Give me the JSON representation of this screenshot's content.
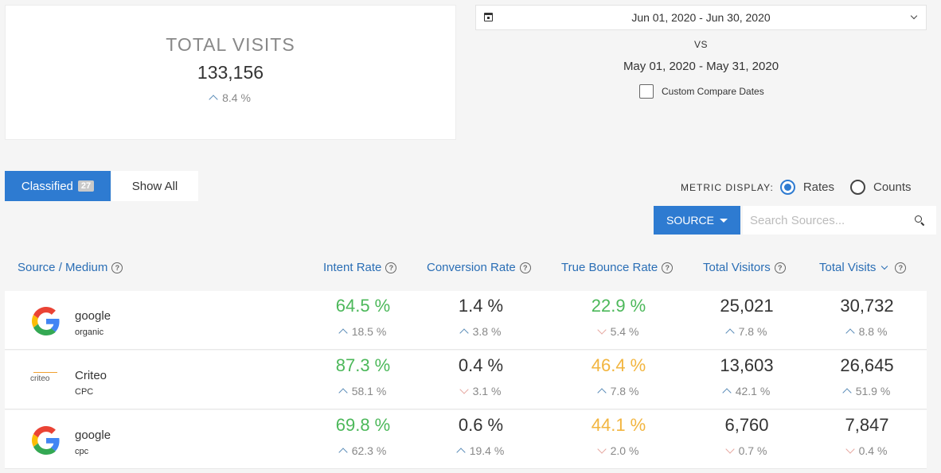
{
  "summary": {
    "title": "TOTAL VISITS",
    "value": "133,156",
    "change": "8.4 %"
  },
  "dates": {
    "primary_range": "Jun 01, 2020 - Jun 30, 2020",
    "vs_label": "VS",
    "compare_range": "May 01, 2020 - May 31, 2020",
    "custom_compare_label": "Custom Compare Dates"
  },
  "tabs": {
    "classified_label": "Classified",
    "classified_count": "27",
    "show_all_label": "Show All"
  },
  "metric_display": {
    "label": "METRIC DISPLAY:",
    "options": [
      "Rates",
      "Counts"
    ],
    "selected": "Rates"
  },
  "filter": {
    "source_button": "SOURCE",
    "search_placeholder": "Search Sources..."
  },
  "columns": [
    "Source / Medium",
    "Intent Rate",
    "Conversion Rate",
    "True Bounce Rate",
    "Total Visitors",
    "Total Visits"
  ],
  "rows": [
    {
      "name": "google",
      "medium": "organic",
      "logo": "google-logo",
      "cells": [
        {
          "value": "64.5 %",
          "change": "18.5 %"
        },
        {
          "value": "1.4 %",
          "change": "3.8 %"
        },
        {
          "value": "22.9 %",
          "change": "5.4 %"
        },
        {
          "value": "25,021",
          "change": "7.8 %"
        },
        {
          "value": "30,732",
          "change": "8.8 %"
        }
      ]
    },
    {
      "name": "Criteo",
      "medium": "CPC",
      "logo": "criteo-logo",
      "logo_text": "criteo",
      "cells": [
        {
          "value": "87.3 %",
          "change": "58.1 %"
        },
        {
          "value": "0.4 %",
          "change": "3.1 %"
        },
        {
          "value": "46.4 %",
          "change": "7.8 %"
        },
        {
          "value": "13,603",
          "change": "42.1 %"
        },
        {
          "value": "26,645",
          "change": "51.9 %"
        }
      ]
    },
    {
      "name": "google",
      "medium": "cpc",
      "logo": "google-logo",
      "cells": [
        {
          "value": "69.8 %",
          "change": "62.3 %"
        },
        {
          "value": "0.6 %",
          "change": "19.4 %"
        },
        {
          "value": "44.1 %",
          "change": "2.0 %"
        },
        {
          "value": "6,760",
          "change": "0.7 %"
        },
        {
          "value": "7,847",
          "change": "0.4 %"
        }
      ]
    }
  ],
  "colors": {
    "accent": "#2e7bd1",
    "good": "#4cb85a",
    "warn": "#f2b53f",
    "header_link": "#2a6eb5"
  }
}
